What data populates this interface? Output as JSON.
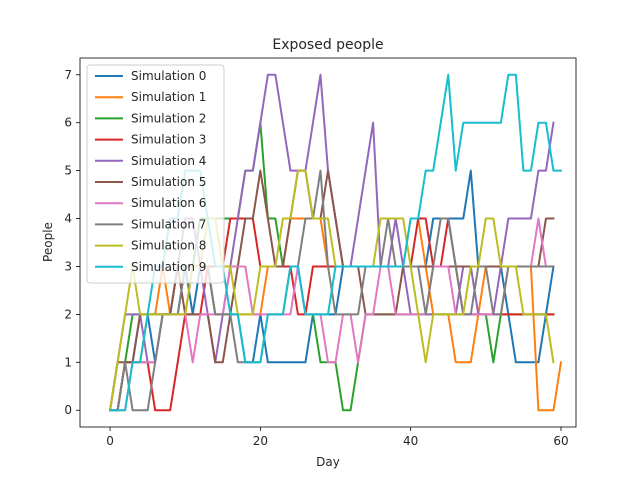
{
  "chart_data": {
    "type": "line",
    "title": "Exposed people",
    "xlabel": "Day",
    "ylabel": "People",
    "xlim": [
      -4,
      62
    ],
    "ylim": [
      -0.35,
      7.35
    ],
    "xticks": [
      0,
      20,
      40,
      60
    ],
    "yticks": [
      0,
      1,
      2,
      3,
      4,
      5,
      6,
      7
    ],
    "legend_position": "upper-left",
    "grid": false,
    "series": [
      {
        "name": "Simulation 0",
        "color": "#1f77b4",
        "values": [
          0,
          0,
          1,
          1,
          2,
          2,
          1,
          2,
          2,
          2,
          3,
          2,
          3,
          3,
          2,
          2,
          2,
          2,
          1,
          1,
          2,
          1,
          1,
          1,
          1,
          1,
          1,
          2,
          2,
          2,
          2,
          3,
          3,
          3,
          3,
          3,
          3,
          3,
          3,
          3,
          3,
          3,
          3,
          4,
          4,
          4,
          4,
          4,
          5,
          3,
          3,
          3,
          3,
          2,
          1,
          1,
          1,
          1,
          2,
          3
        ]
      },
      {
        "name": "Simulation 1",
        "color": "#ff7f0e",
        "values": [
          0,
          0,
          1,
          1,
          1,
          2,
          2,
          3,
          2,
          2,
          2,
          3,
          3,
          3,
          2,
          2,
          2,
          2,
          2,
          2,
          2,
          3,
          3,
          3,
          4,
          4,
          4,
          4,
          4,
          3,
          3,
          3,
          3,
          3,
          3,
          3,
          3,
          3,
          3,
          3,
          4,
          4,
          3,
          2,
          2,
          2,
          1,
          1,
          1,
          2,
          3,
          3,
          3,
          3,
          3,
          3,
          3,
          0,
          0,
          0,
          1
        ]
      },
      {
        "name": "Simulation 2",
        "color": "#2ca02c",
        "values": [
          0,
          0,
          1,
          2,
          2,
          2,
          2,
          2,
          2,
          3,
          3,
          3,
          4,
          4,
          4,
          4,
          4,
          4,
          5,
          5,
          6,
          4,
          4,
          3,
          3,
          3,
          2,
          2,
          1,
          1,
          1,
          0,
          0,
          1,
          2,
          2,
          2,
          2,
          2,
          2,
          2,
          2,
          2,
          2,
          2,
          2,
          2,
          2,
          2,
          2,
          2,
          1,
          2,
          2,
          2,
          2,
          2,
          2,
          2,
          2
        ]
      },
      {
        "name": "Simulation 3",
        "color": "#d62728",
        "values": [
          0,
          0,
          1,
          1,
          1,
          1,
          0,
          0,
          0,
          1,
          2,
          2,
          2,
          3,
          3,
          3,
          4,
          4,
          4,
          4,
          3,
          3,
          3,
          3,
          3,
          2,
          2,
          3,
          3,
          3,
          3,
          3,
          3,
          3,
          3,
          3,
          3,
          3,
          3,
          3,
          3,
          4,
          4,
          3,
          3,
          4,
          3,
          2,
          2,
          2,
          2,
          2,
          2,
          2,
          2,
          2,
          2,
          2,
          2,
          2
        ]
      },
      {
        "name": "Simulation 4",
        "color": "#9467bd",
        "values": [
          0,
          1,
          2,
          2,
          2,
          1,
          1,
          2,
          2,
          3,
          4,
          4,
          3,
          2,
          1,
          2,
          3,
          4,
          5,
          5,
          6,
          7,
          7,
          6,
          5,
          5,
          5,
          6,
          7,
          5,
          4,
          3,
          3,
          4,
          5,
          6,
          3,
          3,
          4,
          3,
          2,
          2,
          2,
          2,
          2,
          2,
          2,
          3,
          3,
          2,
          2,
          2,
          3,
          4,
          4,
          4,
          4,
          5,
          5,
          6
        ]
      },
      {
        "name": "Simulation 5",
        "color": "#8c564b",
        "values": [
          0,
          1,
          1,
          1,
          2,
          2,
          2,
          2,
          2,
          3,
          2,
          2,
          2,
          2,
          1,
          1,
          2,
          3,
          4,
          4,
          5,
          4,
          3,
          3,
          4,
          5,
          5,
          4,
          4,
          5,
          4,
          3,
          3,
          3,
          2,
          2,
          2,
          2,
          2,
          3,
          3,
          3,
          3,
          3,
          3,
          3,
          3,
          3,
          3,
          3,
          3,
          3,
          3,
          3,
          3,
          3,
          3,
          3,
          4,
          4
        ]
      },
      {
        "name": "Simulation 6",
        "color": "#e377c2",
        "values": [
          0,
          0,
          0,
          1,
          1,
          1,
          1,
          2,
          2,
          2,
          2,
          1,
          2,
          2,
          2,
          2,
          3,
          3,
          3,
          2,
          2,
          2,
          2,
          2,
          2,
          3,
          2,
          2,
          2,
          1,
          1,
          2,
          2,
          1,
          2,
          2,
          3,
          3,
          2,
          2,
          2,
          2,
          2,
          3,
          3,
          3,
          2,
          2,
          2,
          2,
          2,
          2,
          2,
          3,
          3,
          3,
          3,
          4,
          3,
          3
        ]
      },
      {
        "name": "Simulation 7",
        "color": "#7f7f7f",
        "values": [
          0,
          0,
          1,
          0,
          0,
          0,
          1,
          2,
          2,
          2,
          3,
          3,
          3,
          3,
          2,
          2,
          2,
          1,
          1,
          1,
          1,
          2,
          2,
          2,
          3,
          3,
          4,
          4,
          5,
          3,
          2,
          2,
          2,
          2,
          3,
          3,
          3,
          4,
          3,
          3,
          3,
          3,
          2,
          3,
          4,
          4,
          3,
          2,
          2,
          3,
          3,
          2,
          2,
          3,
          3,
          3,
          3,
          3,
          3,
          3
        ]
      },
      {
        "name": "Simulation 8",
        "color": "#bcbd22",
        "values": [
          0,
          1,
          2,
          3,
          2,
          2,
          2,
          2,
          2,
          2,
          2,
          3,
          3,
          4,
          4,
          3,
          3,
          2,
          2,
          2,
          3,
          3,
          3,
          4,
          4,
          5,
          5,
          4,
          4,
          4,
          3,
          3,
          3,
          3,
          3,
          3,
          4,
          4,
          4,
          4,
          3,
          2,
          1,
          2,
          2,
          2,
          2,
          2,
          3,
          3,
          4,
          4,
          3,
          3,
          3,
          2,
          2,
          2,
          2,
          1
        ]
      },
      {
        "name": "Simulation 9",
        "color": "#17becf",
        "values": [
          0,
          0,
          0,
          1,
          1,
          2,
          3,
          3,
          4,
          4,
          5,
          5,
          5,
          4,
          3,
          3,
          2,
          2,
          1,
          1,
          1,
          2,
          2,
          2,
          3,
          3,
          2,
          2,
          2,
          2,
          3,
          3,
          3,
          3,
          3,
          3,
          3,
          3,
          3,
          3,
          4,
          4,
          5,
          5,
          6,
          7,
          5,
          6,
          6,
          6,
          6,
          6,
          6,
          7,
          7,
          5,
          5,
          6,
          6,
          5,
          5
        ]
      }
    ]
  }
}
